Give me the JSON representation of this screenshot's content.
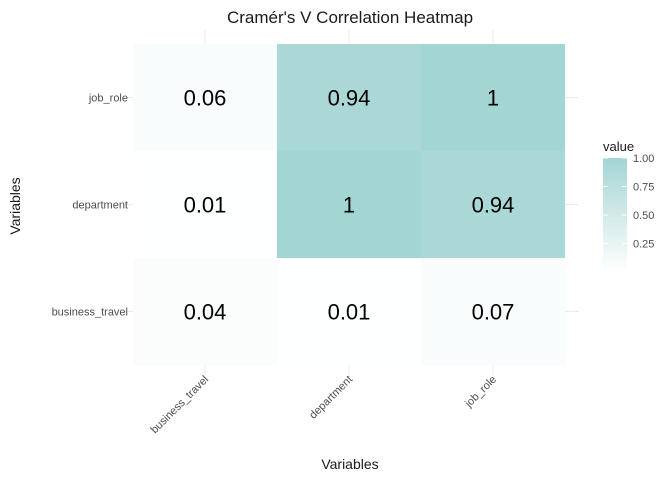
{
  "chart_data": {
    "type": "heatmap",
    "title": "Cramér's V Correlation Heatmap",
    "xlabel": "Variables",
    "ylabel": "Variables",
    "x_categories": [
      "business_travel",
      "department",
      "job_role"
    ],
    "y_categories": [
      "business_travel",
      "department",
      "job_role"
    ],
    "cells": [
      {
        "x": "business_travel",
        "y": "business_travel",
        "value": 0.04,
        "label": "0.04"
      },
      {
        "x": "department",
        "y": "business_travel",
        "value": 0.01,
        "label": "0.01"
      },
      {
        "x": "job_role",
        "y": "business_travel",
        "value": 0.07,
        "label": "0.07"
      },
      {
        "x": "business_travel",
        "y": "department",
        "value": 0.01,
        "label": "0.01"
      },
      {
        "x": "department",
        "y": "department",
        "value": 1,
        "label": "1"
      },
      {
        "x": "job_role",
        "y": "department",
        "value": 0.94,
        "label": "0.94"
      },
      {
        "x": "business_travel",
        "y": "job_role",
        "value": 0.06,
        "label": "0.06"
      },
      {
        "x": "department",
        "y": "job_role",
        "value": 0.94,
        "label": "0.94"
      },
      {
        "x": "job_role",
        "y": "job_role",
        "value": 1,
        "label": "1"
      }
    ],
    "legend": {
      "title": "value",
      "ticks": [
        "0.25",
        "0.50",
        "0.75",
        "1.00"
      ],
      "range": [
        0,
        1
      ],
      "low_color": "#ffffff",
      "high_color": "#a3d5d3",
      "placement": "right"
    },
    "grid": true
  }
}
